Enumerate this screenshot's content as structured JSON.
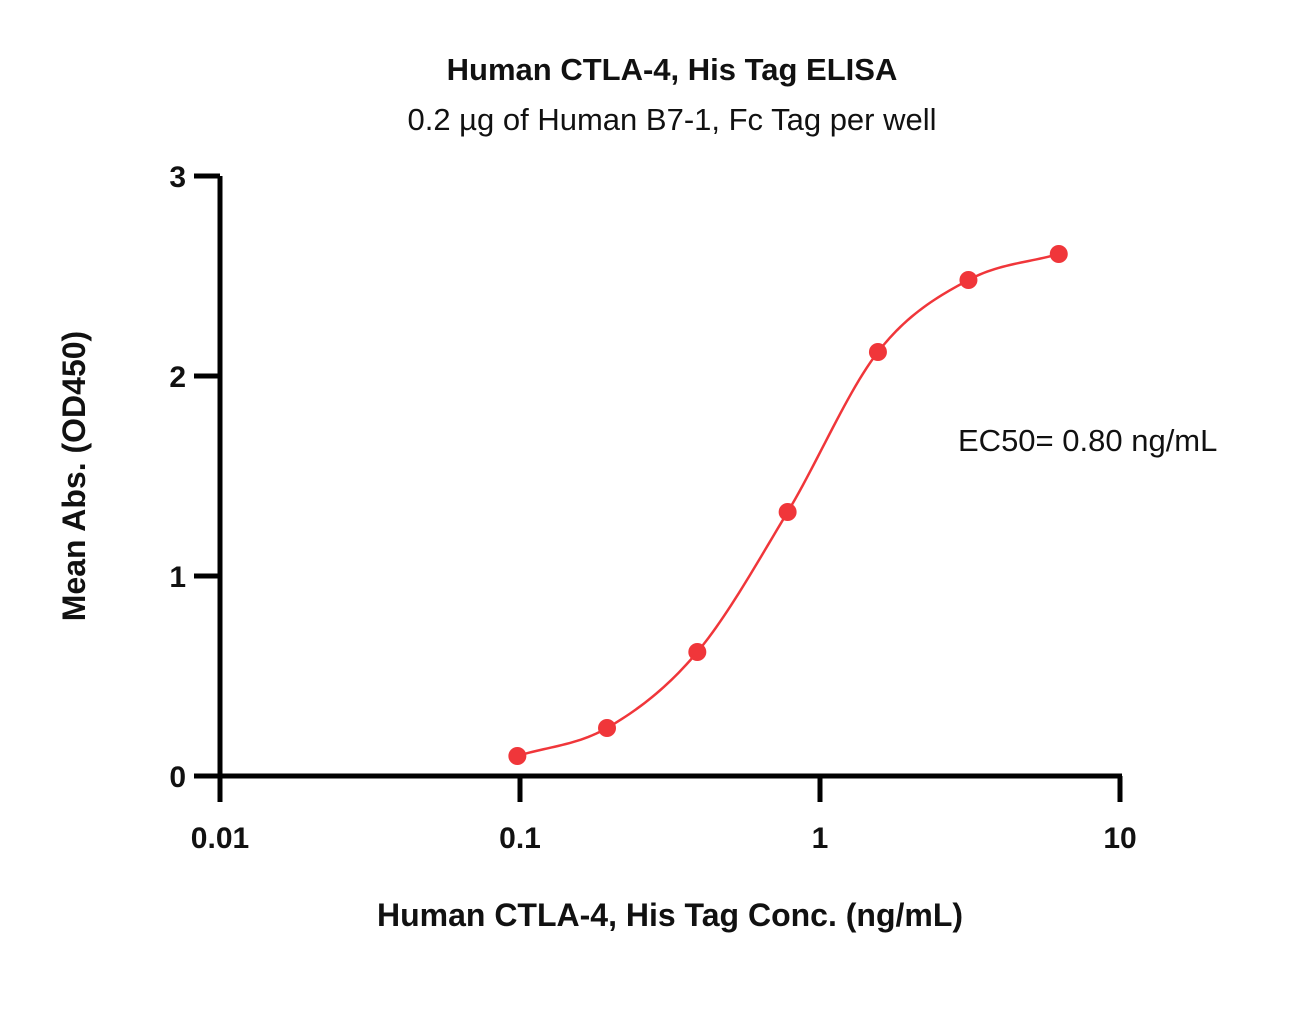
{
  "chart_data": {
    "type": "scatter",
    "title": "Human CTLA-4, His Tag ELISA",
    "subtitle": "0.2 µg of Human B7-1, Fc Tag per well",
    "xlabel": "Human CTLA-4, His Tag Conc. (ng/mL)",
    "ylabel": "Mean Abs. (OD450)",
    "xscale": "log",
    "xlim": [
      0.01,
      10
    ],
    "ylim": [
      0,
      3
    ],
    "xticks": [
      0.01,
      0.1,
      1,
      10
    ],
    "xtick_labels": [
      "0.01",
      "0.1",
      "1",
      "10"
    ],
    "yticks": [
      0,
      1,
      2,
      3
    ],
    "ytick_labels": [
      "0",
      "1",
      "2",
      "3"
    ],
    "grid": false,
    "series": [
      {
        "x": [
          0.098,
          0.195,
          0.39,
          0.78,
          1.56,
          3.125,
          6.25
        ],
        "y": [
          0.1,
          0.24,
          0.62,
          1.32,
          2.12,
          2.48,
          2.61
        ],
        "color": "#f0363a",
        "fit": "four-parameter logistic"
      }
    ],
    "annotation": "EC50= 0.80 ng/mL"
  }
}
